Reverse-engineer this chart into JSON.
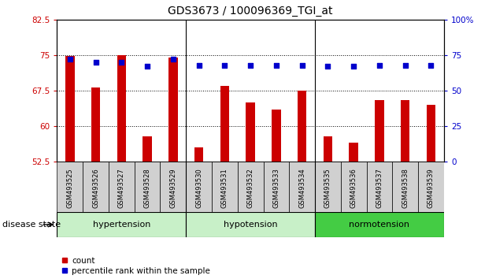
{
  "title": "GDS3673 / 100096369_TGI_at",
  "samples": [
    "GSM493525",
    "GSM493526",
    "GSM493527",
    "GSM493528",
    "GSM493529",
    "GSM493530",
    "GSM493531",
    "GSM493532",
    "GSM493533",
    "GSM493534",
    "GSM493535",
    "GSM493536",
    "GSM493537",
    "GSM493538",
    "GSM493539"
  ],
  "bar_values": [
    74.8,
    68.2,
    75.0,
    57.8,
    74.5,
    55.5,
    68.5,
    65.0,
    63.5,
    67.5,
    57.8,
    56.5,
    65.5,
    65.5,
    64.5
  ],
  "dot_values": [
    72,
    70,
    70,
    67,
    72,
    68,
    68,
    68,
    68,
    68,
    67,
    67,
    68,
    68,
    68
  ],
  "ylim_left": [
    52.5,
    82.5
  ],
  "ylim_right": [
    0,
    100
  ],
  "yticks_left": [
    52.5,
    60.0,
    67.5,
    75.0,
    82.5
  ],
  "yticks_right": [
    0,
    25,
    50,
    75,
    100
  ],
  "bar_color": "#cc0000",
  "dot_color": "#0000cc",
  "groups": [
    {
      "label": "hypertension",
      "start": 0,
      "end": 5
    },
    {
      "label": "hypotension",
      "start": 5,
      "end": 10
    },
    {
      "label": "normotension",
      "start": 10,
      "end": 15
    }
  ],
  "group_colors": [
    "#c8f0c8",
    "#c8f0c8",
    "#44cc44"
  ],
  "xtick_bg": "#d0d0d0",
  "left_axis_color": "#cc0000",
  "right_axis_color": "#0000cc",
  "grid_color": "#000000",
  "disease_state_label": "disease state",
  "legend_count_label": "count",
  "legend_pct_label": "percentile rank within the sample",
  "fig_width": 6.3,
  "fig_height": 3.54,
  "dpi": 100
}
